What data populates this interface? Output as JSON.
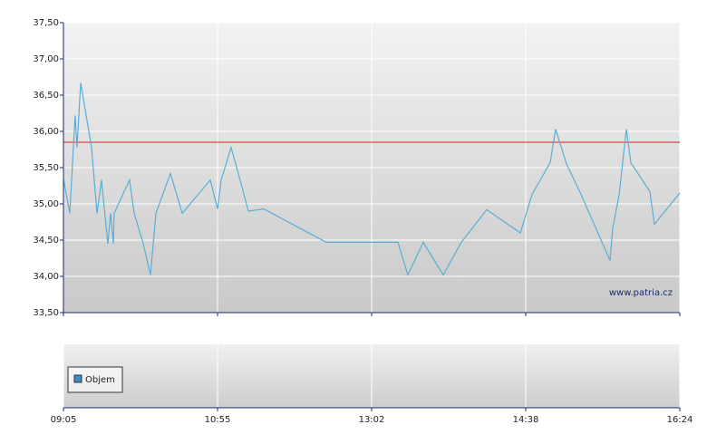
{
  "chart_data": {
    "type": "line",
    "x": [
      0,
      0.041,
      0.076,
      0.088,
      0.112,
      0.182,
      0.218,
      0.247,
      0.288,
      0.306,
      0.324,
      0.329,
      0.429,
      0.459,
      0.518,
      0.565,
      0.6,
      0.694,
      0.771,
      0.953,
      1,
      1.024,
      1.088,
      1.153,
      1.2,
      1.3,
      1.706,
      2.171,
      2.235,
      2.335,
      2.465,
      2.582,
      2.747,
      2.965,
      3.041,
      3.159,
      3.194,
      3.265,
      3.359,
      3.547,
      3.565,
      3.606,
      3.653,
      3.682,
      3.806,
      3.835,
      4
    ],
    "values": [
      35.35,
      34.87,
      36.22,
      35.78,
      36.67,
      35.78,
      34.87,
      35.33,
      34.45,
      34.87,
      34.45,
      34.87,
      35.33,
      34.87,
      34.45,
      34.02,
      34.87,
      35.42,
      34.87,
      35.33,
      34.93,
      35.33,
      35.78,
      35.28,
      34.9,
      34.93,
      34.47,
      34.47,
      34.02,
      34.47,
      34.02,
      34.47,
      34.92,
      34.6,
      35.13,
      35.57,
      36.03,
      35.55,
      35.13,
      34.22,
      34.67,
      35.12,
      36.03,
      35.57,
      35.17,
      34.72,
      35.15
    ],
    "color": "#5aaed6",
    "reference_line": {
      "value": 35.85,
      "color": "#cc2222"
    },
    "xlim": [
      0,
      4
    ],
    "xticks": [
      {
        "value": 0,
        "label": "09:05"
      },
      {
        "value": 1,
        "label": "10:55"
      },
      {
        "value": 2,
        "label": "13:02"
      },
      {
        "value": 3,
        "label": "14:38"
      },
      {
        "value": 4,
        "label": "16:24"
      }
    ],
    "ylim": [
      33.5,
      37.5
    ],
    "yticks": [
      {
        "value": 33.5,
        "label": "33,50"
      },
      {
        "value": 34,
        "label": "34,00"
      },
      {
        "value": 34.5,
        "label": "34,50"
      },
      {
        "value": 35,
        "label": "35,00"
      },
      {
        "value": 35.5,
        "label": "35,50"
      },
      {
        "value": 36,
        "label": "36,00"
      },
      {
        "value": 36.5,
        "label": "36,50"
      },
      {
        "value": 37,
        "label": "37,00"
      },
      {
        "value": 37.5,
        "label": "37,50"
      }
    ],
    "grid": true,
    "watermark": "www.patria.cz",
    "volume_legend": "Objem",
    "volume_color": "#3a8fc7"
  }
}
